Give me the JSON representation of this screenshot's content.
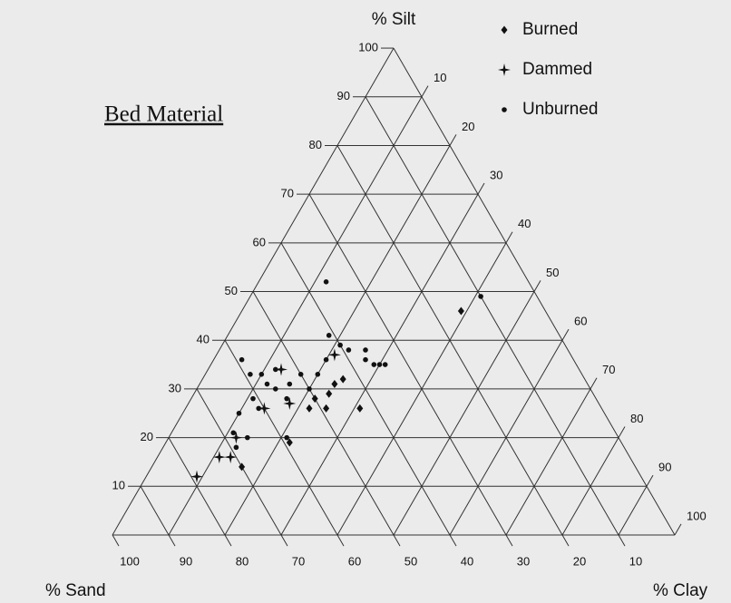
{
  "chart_data": {
    "type": "ternary",
    "title": "Bed Material",
    "silt_label": "% Silt",
    "sand_label": "% Sand",
    "clay_label": "% Clay",
    "silt_ticks": [
      10,
      20,
      30,
      40,
      50,
      60,
      70,
      80,
      90,
      100
    ],
    "clay_ticks": [
      10,
      20,
      30,
      40,
      50,
      60,
      70,
      80,
      90,
      100
    ],
    "sand_ticks": [
      10,
      20,
      30,
      40,
      50,
      60,
      70,
      80,
      90,
      100
    ],
    "grid": true,
    "legend": "top-right",
    "series": [
      {
        "name": "Burned",
        "marker": "diamond",
        "color": "#111111",
        "silt": [
          46,
          32,
          31,
          29,
          28,
          26,
          26,
          26,
          19,
          14
        ],
        "clay": [
          39,
          25,
          24,
          24,
          22,
          22,
          25,
          31,
          22,
          16
        ],
        "sand": [
          15,
          43,
          45,
          47,
          50,
          52,
          49,
          43,
          59,
          70
        ]
      },
      {
        "name": "Dammed",
        "marker": "cross",
        "color": "#111111",
        "silt": [
          12,
          16,
          16,
          20,
          26,
          27,
          34,
          37
        ],
        "clay": [
          9,
          11,
          13,
          12,
          14,
          18,
          13,
          21
        ],
        "sand": [
          79,
          73,
          71,
          68,
          60,
          55,
          53,
          42
        ]
      },
      {
        "name": "Unburned",
        "marker": "circle",
        "color": "#111111",
        "silt": [
          52,
          49,
          41,
          39,
          38,
          38,
          36,
          35,
          35,
          35,
          36,
          33,
          33,
          30,
          31,
          34,
          30,
          31,
          33,
          36,
          33,
          26,
          28,
          25,
          21,
          18,
          20,
          28,
          20
        ],
        "clay": [
          12,
          41,
          18,
          21,
          23,
          26,
          27,
          29,
          30,
          31,
          20,
          20,
          17,
          20,
          16,
          12,
          14,
          12,
          10,
          5,
          8,
          13,
          17,
          10,
          11,
          13,
          14,
          11,
          21
        ],
        "sand": [
          36,
          10,
          41,
          40,
          39,
          36,
          37,
          36,
          35,
          34,
          44,
          47,
          50,
          50,
          53,
          54,
          56,
          57,
          57,
          59,
          59,
          61,
          55,
          65,
          68,
          69,
          66,
          61,
          59
        ]
      }
    ]
  }
}
